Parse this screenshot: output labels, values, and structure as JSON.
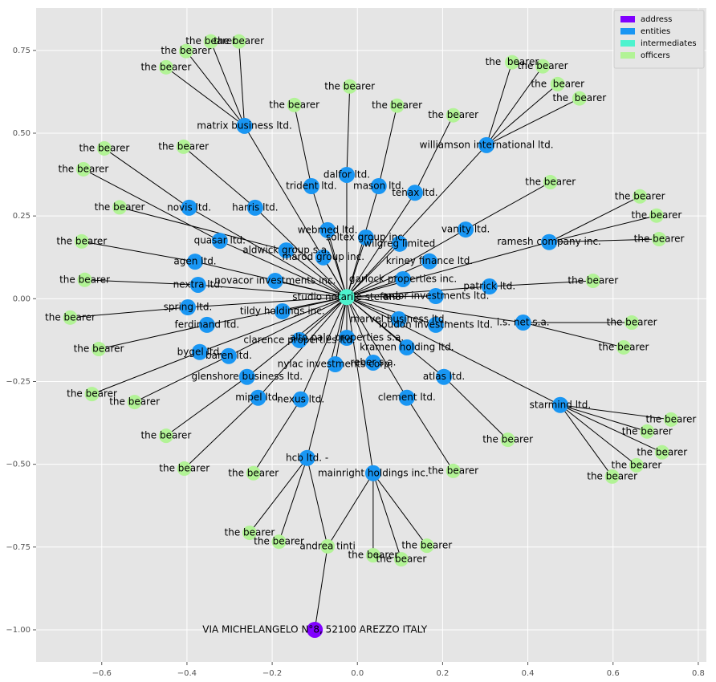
{
  "chart_data": {
    "type": "network",
    "xlim": [
      -0.754,
      0.819
    ],
    "ylim": [
      -1.097,
      0.878
    ],
    "xticks": [
      {
        "value": -0.6,
        "label": "−0.6"
      },
      {
        "value": -0.4,
        "label": "−0.4"
      },
      {
        "value": -0.2,
        "label": "−0.2"
      },
      {
        "value": 0,
        "label": "0.0"
      },
      {
        "value": 0.2,
        "label": "0.2"
      },
      {
        "value": 0.4,
        "label": "0.4"
      },
      {
        "value": 0.6,
        "label": "0.6"
      },
      {
        "value": 0.8,
        "label": "0.8"
      }
    ],
    "yticks": [
      {
        "value": -1,
        "label": "−1.00"
      },
      {
        "value": -0.75,
        "label": "−0.75"
      },
      {
        "value": -0.5,
        "label": "−0.50"
      },
      {
        "value": -0.25,
        "label": "−0.25"
      },
      {
        "value": 0,
        "label": "0.00"
      },
      {
        "value": 0.25,
        "label": "0.25"
      },
      {
        "value": 0.5,
        "label": "0.50"
      },
      {
        "value": 0.75,
        "label": "0.75"
      }
    ],
    "grid": true,
    "legend": "upper right",
    "series": [
      {
        "name": "address",
        "color": "#8000ff"
      },
      {
        "name": "entities",
        "color": "#1996f3"
      },
      {
        "name": "intermediates",
        "color": "#4df3ce"
      },
      {
        "name": "officers",
        "color": "#b2f396"
      }
    ],
    "nodes": [
      {
        "label": "studio notarile stefano",
        "x": -0.025,
        "y": 0.005,
        "group": "intermediates"
      },
      {
        "label": "VIA MICHELANGELO N°8, 52100 AREZZO ITALY",
        "x": -0.1,
        "y": -1.0,
        "group": "address"
      },
      {
        "label": "andrea tinti",
        "x": -0.07,
        "y": -0.748,
        "group": "officers"
      },
      {
        "label": "matrix business ltd.",
        "x": -0.265,
        "y": 0.522,
        "group": "entities"
      },
      {
        "label": "novis ltd.",
        "x": -0.395,
        "y": 0.275,
        "group": "entities"
      },
      {
        "label": "harris ltd.",
        "x": -0.24,
        "y": 0.275,
        "group": "entities"
      },
      {
        "label": "trident ltd.",
        "x": -0.108,
        "y": 0.34,
        "group": "entities"
      },
      {
        "label": "dalfor ltd.",
        "x": -0.025,
        "y": 0.374,
        "group": "entities"
      },
      {
        "label": "mason ltd.",
        "x": 0.05,
        "y": 0.34,
        "group": "entities"
      },
      {
        "label": "tenax ltd.",
        "x": 0.135,
        "y": 0.32,
        "group": "entities"
      },
      {
        "label": "williamson international ltd.",
        "x": 0.303,
        "y": 0.464,
        "group": "entities"
      },
      {
        "label": "webmed ltd.",
        "x": -0.07,
        "y": 0.207,
        "group": "entities"
      },
      {
        "label": "soltex group inc.",
        "x": 0.02,
        "y": 0.185,
        "group": "entities"
      },
      {
        "label": "wilgreg limited",
        "x": 0.099,
        "y": 0.166,
        "group": "entities"
      },
      {
        "label": "vanity ltd.",
        "x": 0.254,
        "y": 0.209,
        "group": "entities"
      },
      {
        "label": "ramesh company inc.",
        "x": 0.45,
        "y": 0.171,
        "group": "entities"
      },
      {
        "label": "quasar ltd.",
        "x": -0.323,
        "y": 0.175,
        "group": "entities"
      },
      {
        "label": "aldwick group s.a.",
        "x": -0.167,
        "y": 0.146,
        "group": "entities"
      },
      {
        "label": "marod group inc.",
        "x": -0.08,
        "y": 0.125,
        "group": "entities"
      },
      {
        "label": "kriney finance ltd.",
        "x": 0.169,
        "y": 0.113,
        "group": "entities"
      },
      {
        "label": "agen ltd.",
        "x": -0.381,
        "y": 0.112,
        "group": "entities"
      },
      {
        "label": "novacor investments inc.",
        "x": -0.193,
        "y": 0.054,
        "group": "entities"
      },
      {
        "label": "garlock properties inc.",
        "x": 0.107,
        "y": 0.059,
        "group": "entities"
      },
      {
        "label": "nextra ltd.",
        "x": -0.374,
        "y": 0.042,
        "group": "entities"
      },
      {
        "label": "patrick ltd.",
        "x": 0.31,
        "y": 0.037,
        "group": "entities"
      },
      {
        "label": "ardor investments ltd.",
        "x": 0.184,
        "y": 0.008,
        "group": "entities"
      },
      {
        "label": "spring ltd.",
        "x": -0.398,
        "y": -0.026,
        "group": "entities"
      },
      {
        "label": "tildy holdings inc.",
        "x": -0.176,
        "y": -0.038,
        "group": "entities"
      },
      {
        "label": "marvel business ltd.",
        "x": 0.097,
        "y": -0.062,
        "group": "entities"
      },
      {
        "label": "loudon investments ltd.",
        "x": 0.184,
        "y": -0.079,
        "group": "entities"
      },
      {
        "label": "i.s. net s.a.",
        "x": 0.389,
        "y": -0.072,
        "group": "entities"
      },
      {
        "label": "ferdinand ltd.",
        "x": -0.353,
        "y": -0.079,
        "group": "entities"
      },
      {
        "label": "clarence properties ltd.",
        "x": -0.136,
        "y": -0.125,
        "group": "entities"
      },
      {
        "label": "alto palo properties s.a.",
        "x": -0.025,
        "y": -0.118,
        "group": "entities"
      },
      {
        "label": "kramen holding ltd.",
        "x": 0.116,
        "y": -0.147,
        "group": "entities"
      },
      {
        "label": "bygel ltd.",
        "x": -0.37,
        "y": -0.161,
        "group": "entities"
      },
      {
        "label": "baren ltd.",
        "x": -0.302,
        "y": -0.173,
        "group": "entities"
      },
      {
        "label": "nylac investments corp.",
        "x": -0.052,
        "y": -0.198,
        "group": "entities"
      },
      {
        "label": "reber s.a.",
        "x": 0.037,
        "y": -0.193,
        "group": "entities"
      },
      {
        "label": "glenshore business ltd.",
        "x": -0.259,
        "y": -0.236,
        "group": "entities"
      },
      {
        "label": "atlas ltd.",
        "x": 0.203,
        "y": -0.236,
        "group": "entities"
      },
      {
        "label": "mipel ltd.",
        "x": -0.233,
        "y": -0.299,
        "group": "entities"
      },
      {
        "label": "nexus ltd.",
        "x": -0.133,
        "y": -0.304,
        "group": "entities"
      },
      {
        "label": "clement ltd.",
        "x": 0.116,
        "y": -0.299,
        "group": "entities"
      },
      {
        "label": "starmind ltd.",
        "x": 0.476,
        "y": -0.321,
        "group": "entities"
      },
      {
        "label": "hcb ltd. -",
        "x": -0.118,
        "y": -0.481,
        "group": "entities"
      },
      {
        "label": "mainright holdings inc.",
        "x": 0.037,
        "y": -0.527,
        "group": "entities"
      },
      {
        "label": "the bearer",
        "x": -0.344,
        "y": 0.777,
        "group": "officers"
      },
      {
        "label": "the bearer",
        "x": -0.278,
        "y": 0.777,
        "group": "officers"
      },
      {
        "label": "the bearer",
        "x": -0.402,
        "y": 0.748,
        "group": "officers"
      },
      {
        "label": "the bearer",
        "x": -0.449,
        "y": 0.699,
        "group": "officers"
      },
      {
        "label": "the bearer",
        "x": -0.594,
        "y": 0.454,
        "group": "officers"
      },
      {
        "label": "the bearer",
        "x": -0.408,
        "y": 0.459,
        "group": "officers"
      },
      {
        "label": "the bearer",
        "x": -0.643,
        "y": 0.391,
        "group": "officers"
      },
      {
        "label": "the bearer",
        "x": -0.558,
        "y": 0.276,
        "group": "officers"
      },
      {
        "label": "the bearer",
        "x": -0.647,
        "y": 0.173,
        "group": "officers"
      },
      {
        "label": "the bearer",
        "x": -0.64,
        "y": 0.057,
        "group": "officers"
      },
      {
        "label": "the bearer",
        "x": -0.674,
        "y": -0.057,
        "group": "officers"
      },
      {
        "label": "the bearer",
        "x": -0.607,
        "y": -0.152,
        "group": "officers"
      },
      {
        "label": "the bearer",
        "x": -0.623,
        "y": -0.288,
        "group": "officers"
      },
      {
        "label": "the bearer",
        "x": -0.523,
        "y": -0.312,
        "group": "officers"
      },
      {
        "label": "the bearer",
        "x": -0.449,
        "y": -0.414,
        "group": "officers"
      },
      {
        "label": "the bearer",
        "x": -0.406,
        "y": -0.513,
        "group": "officers"
      },
      {
        "label": "the bearer",
        "x": -0.244,
        "y": -0.527,
        "group": "officers"
      },
      {
        "label": "the bearer",
        "x": -0.253,
        "y": -0.707,
        "group": "officers"
      },
      {
        "label": "the bearer",
        "x": -0.184,
        "y": -0.734,
        "group": "officers"
      },
      {
        "label": "the bearer",
        "x": -0.148,
        "y": 0.585,
        "group": "officers"
      },
      {
        "label": "the bearer",
        "x": -0.018,
        "y": 0.641,
        "group": "officers"
      },
      {
        "label": "the bearer",
        "x": 0.093,
        "y": 0.583,
        "group": "officers"
      },
      {
        "label": "the bearer",
        "x": 0.225,
        "y": 0.554,
        "group": "officers"
      },
      {
        "label": "the  bearer",
        "x": 0.363,
        "y": 0.714,
        "group": "officers"
      },
      {
        "label": "the bearer",
        "x": 0.435,
        "y": 0.702,
        "group": "officers"
      },
      {
        "label": "the  bearer",
        "x": 0.47,
        "y": 0.648,
        "group": "officers"
      },
      {
        "label": "the  bearer",
        "x": 0.521,
        "y": 0.605,
        "group": "officers"
      },
      {
        "label": "the bearer",
        "x": 0.453,
        "y": 0.352,
        "group": "officers"
      },
      {
        "label": "the bearer",
        "x": 0.663,
        "y": 0.309,
        "group": "officers"
      },
      {
        "label": "the bearer",
        "x": 0.702,
        "y": 0.251,
        "group": "officers"
      },
      {
        "label": "the bearer",
        "x": 0.708,
        "y": 0.18,
        "group": "officers"
      },
      {
        "label": "the bearer",
        "x": 0.553,
        "y": 0.054,
        "group": "officers"
      },
      {
        "label": "the bearer",
        "x": 0.644,
        "y": -0.072,
        "group": "officers"
      },
      {
        "label": "the bearer",
        "x": 0.625,
        "y": -0.147,
        "group": "officers"
      },
      {
        "label": "the bearer",
        "x": 0.353,
        "y": -0.426,
        "group": "officers"
      },
      {
        "label": "the bearer",
        "x": 0.225,
        "y": -0.52,
        "group": "officers"
      },
      {
        "label": "the bearer",
        "x": 0.736,
        "y": -0.365,
        "group": "officers"
      },
      {
        "label": "the bearer",
        "x": 0.68,
        "y": -0.401,
        "group": "officers"
      },
      {
        "label": "the bearer",
        "x": 0.715,
        "y": -0.464,
        "group": "officers"
      },
      {
        "label": "the bearer",
        "x": 0.655,
        "y": -0.503,
        "group": "officers"
      },
      {
        "label": "the bearer",
        "x": 0.598,
        "y": -0.537,
        "group": "officers"
      },
      {
        "label": "the bearer",
        "x": 0.037,
        "y": -0.775,
        "group": "officers"
      },
      {
        "label": "the bearer",
        "x": 0.103,
        "y": -0.787,
        "group": "officers"
      },
      {
        "label": "the bearer",
        "x": 0.163,
        "y": -0.746,
        "group": "officers"
      }
    ],
    "edges": [
      [
        0,
        3
      ],
      [
        0,
        4
      ],
      [
        0,
        5
      ],
      [
        0,
        6
      ],
      [
        0,
        7
      ],
      [
        0,
        8
      ],
      [
        0,
        9
      ],
      [
        0,
        10
      ],
      [
        0,
        11
      ],
      [
        0,
        12
      ],
      [
        0,
        13
      ],
      [
        0,
        14
      ],
      [
        0,
        15
      ],
      [
        0,
        16
      ],
      [
        0,
        17
      ],
      [
        0,
        18
      ],
      [
        0,
        19
      ],
      [
        0,
        20
      ],
      [
        0,
        21
      ],
      [
        0,
        22
      ],
      [
        0,
        23
      ],
      [
        0,
        24
      ],
      [
        0,
        25
      ],
      [
        0,
        26
      ],
      [
        0,
        27
      ],
      [
        0,
        28
      ],
      [
        0,
        29
      ],
      [
        0,
        30
      ],
      [
        0,
        31
      ],
      [
        0,
        32
      ],
      [
        0,
        33
      ],
      [
        0,
        34
      ],
      [
        0,
        35
      ],
      [
        0,
        36
      ],
      [
        0,
        37
      ],
      [
        0,
        38
      ],
      [
        0,
        39
      ],
      [
        0,
        40
      ],
      [
        0,
        41
      ],
      [
        0,
        42
      ],
      [
        0,
        43
      ],
      [
        0,
        44
      ],
      [
        0,
        45
      ],
      [
        0,
        46
      ],
      [
        1,
        2
      ],
      [
        2,
        45
      ],
      [
        2,
        46
      ],
      [
        3,
        47
      ],
      [
        3,
        48
      ],
      [
        3,
        49
      ],
      [
        3,
        50
      ],
      [
        4,
        51
      ],
      [
        5,
        52
      ],
      [
        16,
        53
      ],
      [
        17,
        54
      ],
      [
        20,
        55
      ],
      [
        23,
        56
      ],
      [
        26,
        57
      ],
      [
        31,
        58
      ],
      [
        35,
        59
      ],
      [
        36,
        60
      ],
      [
        39,
        61
      ],
      [
        41,
        62
      ],
      [
        42,
        63
      ],
      [
        45,
        64
      ],
      [
        45,
        65
      ],
      [
        6,
        66
      ],
      [
        7,
        67
      ],
      [
        8,
        68
      ],
      [
        9,
        69
      ],
      [
        10,
        70
      ],
      [
        10,
        71
      ],
      [
        10,
        72
      ],
      [
        10,
        73
      ],
      [
        14,
        74
      ],
      [
        15,
        75
      ],
      [
        15,
        76
      ],
      [
        15,
        77
      ],
      [
        24,
        78
      ],
      [
        30,
        79
      ],
      [
        30,
        80
      ],
      [
        40,
        81
      ],
      [
        43,
        82
      ],
      [
        44,
        83
      ],
      [
        44,
        84
      ],
      [
        44,
        85
      ],
      [
        44,
        86
      ],
      [
        44,
        87
      ],
      [
        46,
        88
      ],
      [
        46,
        89
      ],
      [
        46,
        90
      ]
    ]
  }
}
